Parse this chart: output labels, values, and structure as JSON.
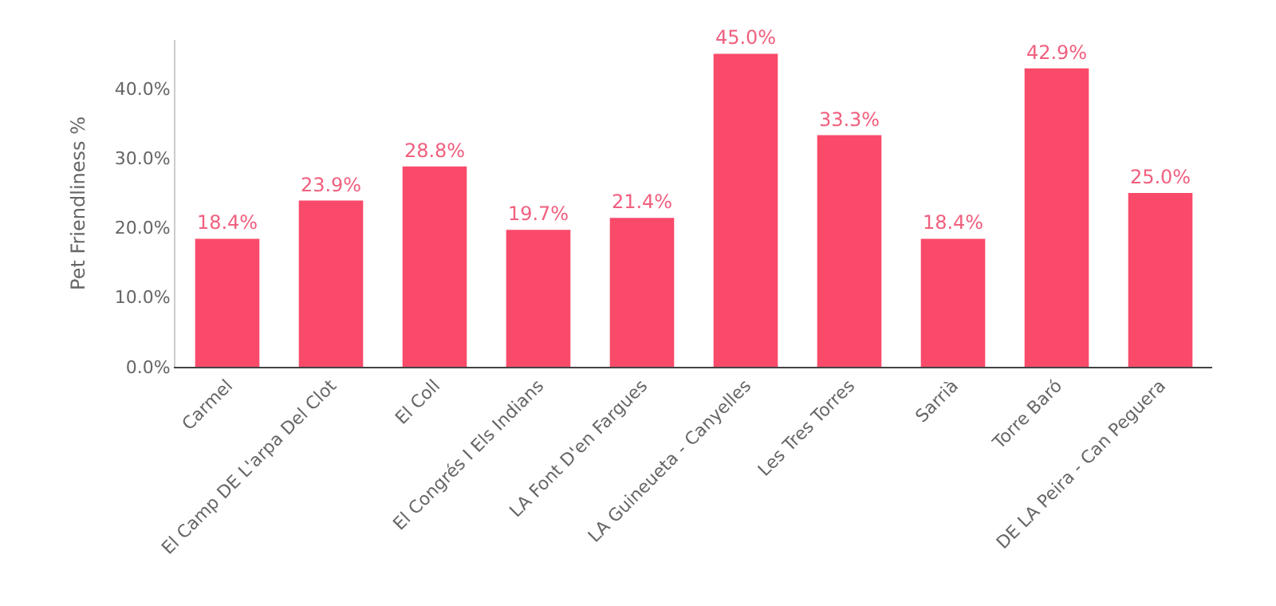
{
  "chart_data": {
    "type": "bar",
    "ylabel": "Pet Friendliness %",
    "categories": [
      "Carmel",
      "El Camp DE L'arpa Del Clot",
      "El Coll",
      "El Congrés I Els Indians",
      "LA Font D'en Fargues",
      "LA Guineueta - Canyelles",
      "Les Tres Torres",
      "Sarrià",
      "Torre Baró",
      "DE LA Peira - Can Peguera"
    ],
    "values": [
      18.4,
      23.9,
      28.8,
      19.7,
      21.4,
      45.0,
      33.3,
      18.4,
      42.9,
      25.0
    ],
    "value_labels": [
      "18.4%",
      "23.9%",
      "28.8%",
      "19.7%",
      "21.4%",
      "45.0%",
      "33.3%",
      "18.4%",
      "42.9%",
      "25.0%"
    ],
    "color": "#f94a6a",
    "ylim": [
      0,
      47
    ],
    "yticks": [
      {
        "value": 0,
        "label": "0.0%"
      },
      {
        "value": 10,
        "label": "10.0%"
      },
      {
        "value": 20,
        "label": "20.0%"
      },
      {
        "value": 30,
        "label": "30.0%"
      },
      {
        "value": 40,
        "label": "40.0%"
      }
    ]
  }
}
